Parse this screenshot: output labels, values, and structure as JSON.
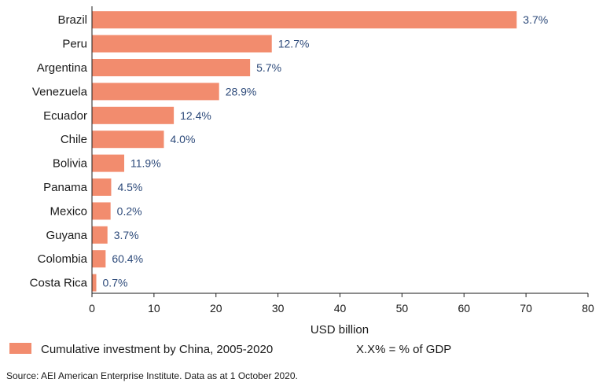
{
  "chart_data": {
    "type": "bar",
    "orientation": "horizontal",
    "categories": [
      "Brazil",
      "Peru",
      "Argentina",
      "Venezuela",
      "Ecuador",
      "Chile",
      "Bolivia",
      "Panama",
      "Mexico",
      "Guyana",
      "Colombia",
      "Costa Rica"
    ],
    "series": [
      {
        "name": "Cumulative investment by China, 2005-2020",
        "values": [
          68.5,
          29.0,
          25.5,
          20.5,
          13.2,
          11.6,
          5.2,
          3.1,
          3.0,
          2.5,
          2.2,
          0.7
        ],
        "data_labels": [
          "3.7%",
          "12.7%",
          "5.7%",
          "28.9%",
          "12.4%",
          "4.0%",
          "11.9%",
          "4.5%",
          "0.2%",
          "3.7%",
          "60.4%",
          "0.7%"
        ]
      }
    ],
    "xlabel": "USD billion",
    "xlim": [
      0,
      80
    ],
    "xticks": [
      0,
      10,
      20,
      30,
      40,
      50,
      60,
      70,
      80
    ],
    "legend_placement": "bottom",
    "grid": false,
    "bar_color": "#f28c6e"
  },
  "legend": {
    "series_label": "Cumulative investment by China, 2005-2020",
    "note": "X.X% = % of GDP"
  },
  "source": "Source: AEI American Enterprise Institute. Data as at 1 October 2020."
}
